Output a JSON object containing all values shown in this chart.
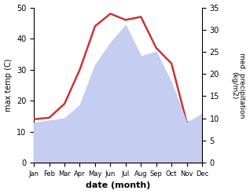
{
  "months": [
    "Jan",
    "Feb",
    "Mar",
    "Apr",
    "May",
    "Jun",
    "Jul",
    "Aug",
    "Sep",
    "Oct",
    "Nov",
    "Dec"
  ],
  "x": [
    1,
    2,
    3,
    4,
    5,
    6,
    7,
    8,
    9,
    10,
    11,
    12
  ],
  "temperature": [
    14,
    14.5,
    19,
    30,
    44,
    48,
    46,
    47,
    37,
    32,
    13,
    13
  ],
  "precipitation": [
    9,
    9.5,
    10,
    13,
    22,
    27,
    31,
    24,
    25,
    18,
    9,
    11
  ],
  "temp_color": "#cc3333",
  "precip_fill_color": "#c5cdf0",
  "left_ylabel": "max temp (C)",
  "right_ylabel": "med. precipitation\n(kg/m2)",
  "xlabel": "date (month)",
  "left_ylim": [
    0,
    50
  ],
  "right_ylim": [
    0,
    35
  ],
  "background_color": "#ffffff"
}
